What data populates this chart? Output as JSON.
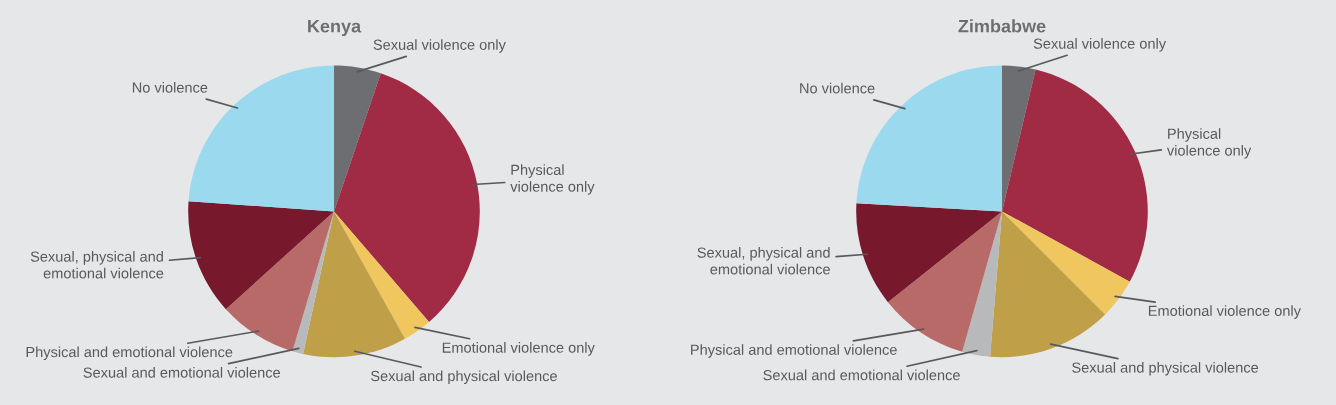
{
  "chart_data": [
    {
      "type": "pie",
      "title": "Kenya",
      "categories": [
        "Sexual violence only",
        "Physical\nviolence only",
        "Emotional violence only",
        "Sexual and physical violence",
        "Sexual and emotional violence",
        "Physical and emotional violence",
        "Sexual, physical and\nemotional violence",
        "No violence"
      ],
      "values": [
        5.2,
        33.5,
        3.2,
        11.5,
        1.2,
        8.7,
        12.8,
        23.9
      ],
      "colors": [
        "#6d6e71",
        "#a12a45",
        "#f0c75e",
        "#bf9f48",
        "#b8b9bb",
        "#b86a69",
        "#77182d",
        "#9ad9ee"
      ]
    },
    {
      "type": "pie",
      "title": "Zimbabwe",
      "categories": [
        "Sexual violence only",
        "Physical\nviolence only",
        "Emotional violence only",
        "Sexual and physical violence",
        "Sexual and emotional violence",
        "Physical and emotional violence",
        "Sexual, physical and\nemotional violence",
        "No violence"
      ],
      "values": [
        3.7,
        29.3,
        4.5,
        13.8,
        3.1,
        9.9,
        11.6,
        24.1
      ],
      "colors": [
        "#6d6e71",
        "#a12a45",
        "#f0c75e",
        "#bf9f48",
        "#b8b9bb",
        "#b86a69",
        "#77182d",
        "#9ad9ee"
      ]
    }
  ]
}
